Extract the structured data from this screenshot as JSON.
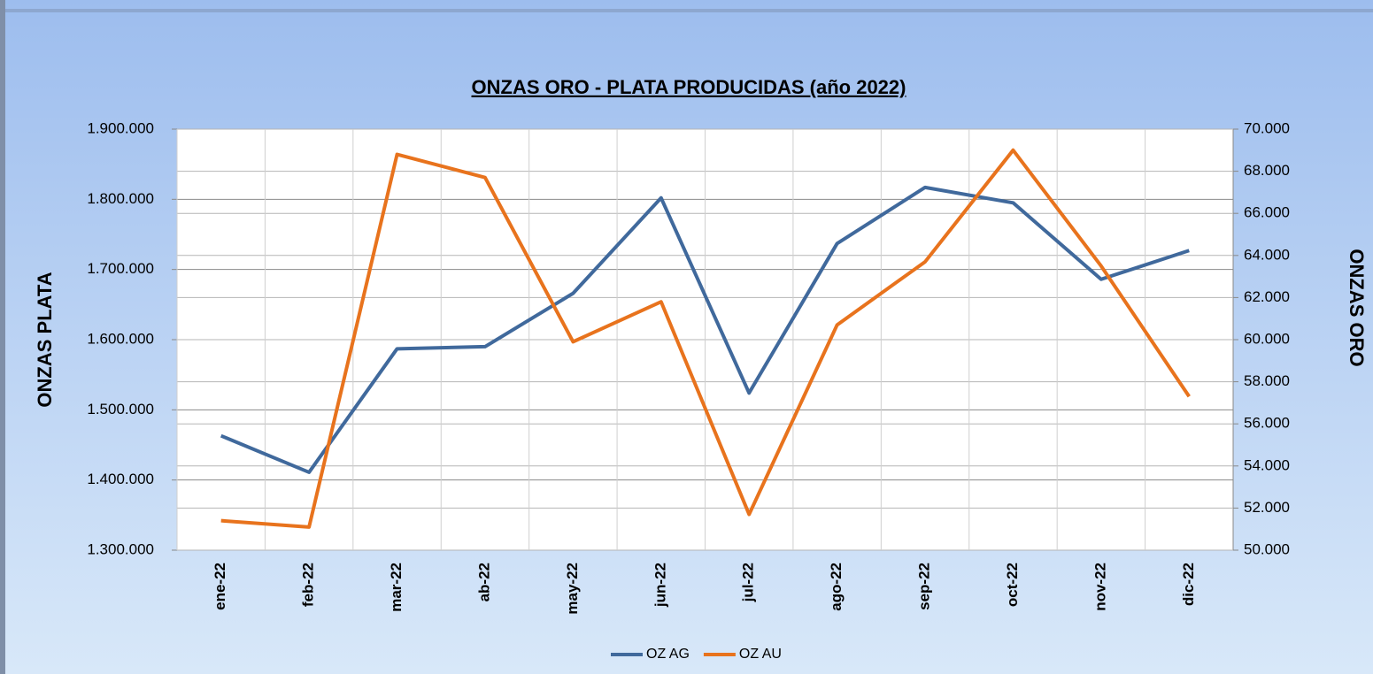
{
  "chart_data": {
    "type": "line",
    "title": "ONZAS ORO - PLATA  PRODUCIDAS (año 2022)",
    "ylabel": "ONZAS PLATA",
    "y2label": "ONZAS ORO",
    "categories": [
      "ene-22",
      "feb-22",
      "mar-22",
      "ab-22",
      "may-22",
      "jun-22",
      "jul-22",
      "ago-22",
      "sep-22",
      "oct-22",
      "nov-22",
      "dic-22"
    ],
    "series": [
      {
        "name": "OZ AG",
        "color": "#40699c",
        "axis": "y",
        "values": [
          1463000,
          1411000,
          1587000,
          1590000,
          1666000,
          1802000,
          1524000,
          1737000,
          1817000,
          1795000,
          1686000,
          1727000
        ]
      },
      {
        "name": "OZ AU",
        "color": "#e8731d",
        "axis": "y2",
        "values": [
          51400,
          51100,
          68800,
          67700,
          59900,
          61800,
          51700,
          60700,
          63700,
          69000,
          63500,
          57300
        ]
      }
    ],
    "ylim": [
      1300000,
      1900000
    ],
    "yticks": [
      {
        "value": 1300000,
        "label": "1.300.000"
      },
      {
        "value": 1400000,
        "label": "1.400.000"
      },
      {
        "value": 1500000,
        "label": "1.500.000"
      },
      {
        "value": 1600000,
        "label": "1.600.000"
      },
      {
        "value": 1700000,
        "label": "1.700.000"
      },
      {
        "value": 1800000,
        "label": "1.800.000"
      },
      {
        "value": 1900000,
        "label": "1.900.000"
      }
    ],
    "y2lim": [
      50000,
      70000
    ],
    "y2ticks": [
      {
        "value": 50000,
        "label": "50.000"
      },
      {
        "value": 52000,
        "label": "52.000"
      },
      {
        "value": 54000,
        "label": "54.000"
      },
      {
        "value": 56000,
        "label": "56.000"
      },
      {
        "value": 58000,
        "label": "58.000"
      },
      {
        "value": 60000,
        "label": "60.000"
      },
      {
        "value": 62000,
        "label": "62.000"
      },
      {
        "value": 64000,
        "label": "64.000"
      },
      {
        "value": 66000,
        "label": "66.000"
      },
      {
        "value": 68000,
        "label": "68.000"
      },
      {
        "value": 70000,
        "label": "70.000"
      }
    ],
    "grid": true,
    "legend": "bottom"
  }
}
